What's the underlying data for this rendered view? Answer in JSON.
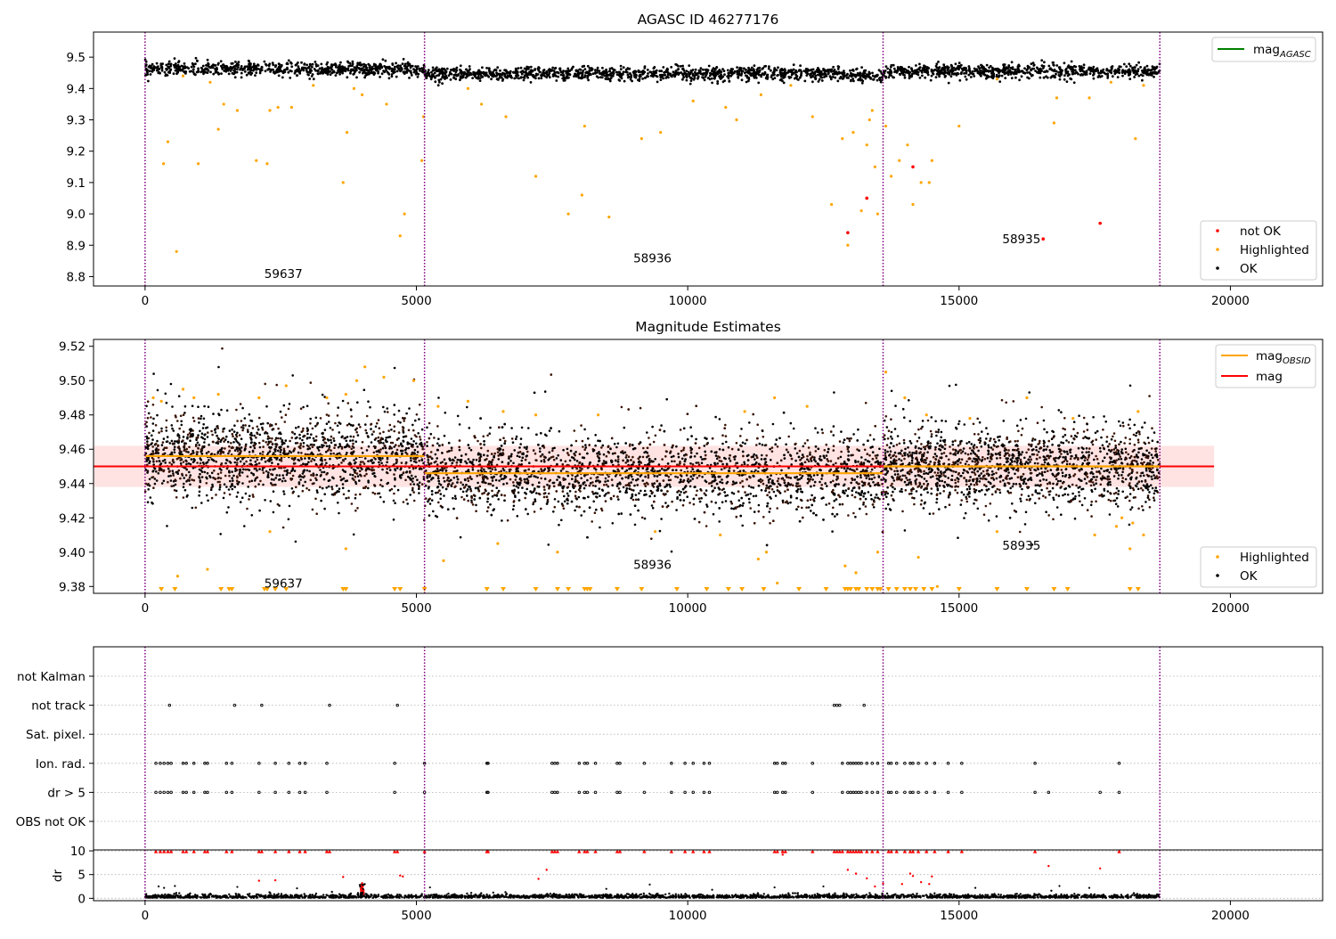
{
  "chart_data": [
    {
      "type": "scatter",
      "title": "AGASC ID 46277176",
      "xlim": [
        -950,
        21700
      ],
      "ylim": [
        8.77,
        9.58
      ],
      "xticks": [
        0,
        5000,
        10000,
        15000,
        20000
      ],
      "yticks": [
        8.8,
        8.9,
        9.0,
        9.1,
        9.2,
        9.3,
        9.4,
        9.5
      ],
      "ytick_labels": [
        "8.8",
        "8.9",
        "9.0",
        "9.1",
        "9.2",
        "9.3",
        "9.4",
        "9.5"
      ],
      "obs_boundaries": [
        0,
        5150,
        13600,
        18700
      ],
      "obsid_labels": [
        {
          "text": "59637",
          "x": 2550,
          "y": 8.81
        },
        {
          "text": "58936",
          "x": 9350,
          "y": 8.86
        },
        {
          "text": "58935",
          "x": 16150,
          "y": 8.92
        }
      ],
      "legend_lines": [
        {
          "label": "mag",
          "sub": "AGASC",
          "color": "#008000"
        }
      ],
      "legend_points": [
        {
          "label": "not OK",
          "color": "#ff0000"
        },
        {
          "label": "Highlighted",
          "color": "#ffa500"
        },
        {
          "label": "OK",
          "color": "#000000"
        }
      ],
      "ok_band": {
        "center": 9.455,
        "spread": 0.022,
        "segments": [
          [
            0,
            5150,
            9.462
          ],
          [
            5150,
            12800,
            9.447
          ],
          [
            12800,
            13600,
            9.44
          ],
          [
            13600,
            18700,
            9.455
          ]
        ]
      },
      "highlighted_points": [
        [
          580,
          8.88
        ],
        [
          340,
          9.16
        ],
        [
          420,
          9.23
        ],
        [
          980,
          9.16
        ],
        [
          1350,
          9.27
        ],
        [
          1450,
          9.35
        ],
        [
          1700,
          9.33
        ],
        [
          2050,
          9.17
        ],
        [
          2250,
          9.16
        ],
        [
          2300,
          9.33
        ],
        [
          2450,
          9.34
        ],
        [
          2700,
          9.34
        ],
        [
          3650,
          9.1
        ],
        [
          3720,
          9.26
        ],
        [
          3850,
          9.4
        ],
        [
          4000,
          9.38
        ],
        [
          4450,
          9.35
        ],
        [
          4700,
          8.93
        ],
        [
          4780,
          9.0
        ],
        [
          5100,
          9.17
        ],
        [
          5130,
          9.31
        ],
        [
          6200,
          9.35
        ],
        [
          6650,
          9.31
        ],
        [
          7200,
          9.12
        ],
        [
          7800,
          9.0
        ],
        [
          8050,
          9.06
        ],
        [
          8100,
          9.28
        ],
        [
          8550,
          8.99
        ],
        [
          9150,
          9.24
        ],
        [
          9500,
          9.26
        ],
        [
          10100,
          9.36
        ],
        [
          10700,
          9.34
        ],
        [
          10900,
          9.3
        ],
        [
          11350,
          9.38
        ],
        [
          12300,
          9.31
        ],
        [
          12650,
          9.03
        ],
        [
          12850,
          9.24
        ],
        [
          12950,
          8.9
        ],
        [
          13050,
          9.26
        ],
        [
          13200,
          9.01
        ],
        [
          13300,
          9.22
        ],
        [
          13350,
          9.3
        ],
        [
          13400,
          9.33
        ],
        [
          13450,
          9.15
        ],
        [
          13500,
          9.0
        ],
        [
          13650,
          9.28
        ],
        [
          13750,
          9.12
        ],
        [
          13900,
          9.17
        ],
        [
          14050,
          9.22
        ],
        [
          14150,
          9.03
        ],
        [
          14300,
          9.1
        ],
        [
          14450,
          9.1
        ],
        [
          14500,
          9.17
        ],
        [
          15000,
          9.28
        ],
        [
          16750,
          9.29
        ],
        [
          18250,
          9.24
        ],
        [
          18400,
          9.41
        ],
        [
          17400,
          9.37
        ],
        [
          17800,
          9.42
        ],
        [
          700,
          9.44
        ],
        [
          1200,
          9.42
        ],
        [
          3100,
          9.41
        ],
        [
          5950,
          9.4
        ],
        [
          11900,
          9.41
        ],
        [
          15700,
          9.43
        ],
        [
          16800,
          9.37
        ]
      ],
      "not_ok_points": [
        [
          12950,
          8.94
        ],
        [
          13300,
          9.05
        ],
        [
          14150,
          9.15
        ],
        [
          16550,
          8.92
        ],
        [
          17600,
          8.97
        ]
      ]
    },
    {
      "type": "scatter",
      "title": "Magnitude Estimates",
      "xlim": [
        -950,
        21700
      ],
      "ylim": [
        9.376,
        9.524
      ],
      "xticks": [
        0,
        5000,
        10000,
        15000,
        20000
      ],
      "yticks": [
        9.38,
        9.4,
        9.42,
        9.44,
        9.46,
        9.48,
        9.5,
        9.52
      ],
      "ytick_labels": [
        "9.38",
        "9.40",
        "9.42",
        "9.44",
        "9.46",
        "9.48",
        "9.50",
        "9.52"
      ],
      "obs_boundaries": [
        0,
        5150,
        13600,
        18700
      ],
      "obsid_labels": [
        {
          "text": "59637",
          "x": 2550,
          "y": 9.382
        },
        {
          "text": "58936",
          "x": 9350,
          "y": 9.393
        },
        {
          "text": "58935",
          "x": 16150,
          "y": 9.404
        }
      ],
      "mag": 9.45,
      "mag_band": [
        9.438,
        9.462
      ],
      "mag_band_x": [
        -950,
        19700
      ],
      "mag_obsid": [
        {
          "x": [
            0,
            5150
          ],
          "y": 9.456
        },
        {
          "x": [
            5150,
            13600
          ],
          "y": 9.446
        },
        {
          "x": [
            13600,
            18700
          ],
          "y": 9.45
        }
      ],
      "legend_lines": [
        {
          "label": "mag",
          "sub": "OBSID",
          "color": "#ffa500"
        },
        {
          "label": "mag",
          "sub": "",
          "color": "#ff0000"
        }
      ],
      "legend_points": [
        {
          "label": "Highlighted",
          "color": "#ffa500"
        },
        {
          "label": "OK",
          "color": "#000000"
        }
      ],
      "ok_band": {
        "segments": [
          [
            0,
            5150,
            9.456,
            0.012
          ],
          [
            5150,
            13600,
            9.446,
            0.011
          ],
          [
            13600,
            18700,
            9.45,
            0.011
          ]
        ]
      },
      "highlighted_points": [
        [
          150,
          9.49
        ],
        [
          300,
          9.488
        ],
        [
          700,
          9.495
        ],
        [
          900,
          9.49
        ],
        [
          1350,
          9.492
        ],
        [
          2100,
          9.49
        ],
        [
          2600,
          9.497
        ],
        [
          3350,
          9.49
        ],
        [
          3700,
          9.492
        ],
        [
          3900,
          9.5
        ],
        [
          4050,
          9.508
        ],
        [
          4400,
          9.502
        ],
        [
          4950,
          9.5
        ],
        [
          5400,
          9.485
        ],
        [
          5950,
          9.488
        ],
        [
          6600,
          9.482
        ],
        [
          7200,
          9.48
        ],
        [
          8350,
          9.48
        ],
        [
          11050,
          9.482
        ],
        [
          11600,
          9.49
        ],
        [
          12200,
          9.485
        ],
        [
          13650,
          9.505
        ],
        [
          14000,
          9.49
        ],
        [
          14400,
          9.48
        ],
        [
          15200,
          9.478
        ],
        [
          16250,
          9.49
        ],
        [
          17100,
          9.478
        ],
        [
          18300,
          9.482
        ],
        [
          600,
          9.386
        ],
        [
          1150,
          9.39
        ],
        [
          2300,
          9.412
        ],
        [
          3700,
          9.402
        ],
        [
          5500,
          9.395
        ],
        [
          6500,
          9.405
        ],
        [
          7600,
          9.4
        ],
        [
          9400,
          9.412
        ],
        [
          10600,
          9.41
        ],
        [
          11300,
          9.396
        ],
        [
          11450,
          9.4
        ],
        [
          11650,
          9.382
        ],
        [
          12900,
          9.392
        ],
        [
          13100,
          9.388
        ],
        [
          13500,
          9.4
        ],
        [
          14250,
          9.397
        ],
        [
          14600,
          9.38
        ],
        [
          15700,
          9.412
        ],
        [
          17500,
          9.41
        ],
        [
          17900,
          9.415
        ],
        [
          18000,
          9.42
        ],
        [
          18150,
          9.402
        ],
        [
          18200,
          9.417
        ],
        [
          18400,
          9.41
        ]
      ],
      "clipped_x": [
        300,
        550,
        1400,
        1550,
        1600,
        2200,
        2250,
        2400,
        2600,
        3650,
        3700,
        4600,
        4700,
        5150,
        6300,
        6600,
        7200,
        7600,
        7800,
        8100,
        8150,
        8200,
        8700,
        9150,
        9800,
        10350,
        10750,
        11000,
        11400,
        12050,
        12550,
        12900,
        12950,
        13000,
        13100,
        13150,
        13300,
        13400,
        13500,
        13550,
        13700,
        13850,
        14000,
        14100,
        14200,
        14350,
        14500,
        15000,
        15700,
        16250,
        16750,
        17000,
        18150,
        18300
      ]
    },
    {
      "type": "scatter",
      "title": "",
      "xlim": [
        -950,
        21700
      ],
      "xticks": [
        0,
        5000,
        10000,
        15000,
        20000
      ],
      "obs_boundaries": [
        0,
        5150,
        13600,
        18700
      ],
      "flag_categories": [
        "not Kalman",
        "not track",
        "Sat. pixel.",
        "Ion. rad.",
        "dr > 5",
        "OBS not OK"
      ],
      "flags": {
        "not track": [
          450,
          1650,
          2150,
          3400,
          4650,
          12700,
          12750,
          12800,
          13250
        ],
        "Ion. rad.": [
          200,
          280,
          350,
          420,
          480,
          700,
          760,
          900,
          1100,
          1150,
          1500,
          1600,
          2100,
          2400,
          2650,
          2850,
          2950,
          3350,
          4600,
          5150,
          6300,
          6320,
          7500,
          7550,
          7600,
          8000,
          8100,
          8150,
          8300,
          8700,
          8750,
          9200,
          9700,
          9950,
          10100,
          10300,
          10400,
          11600,
          11650,
          11750,
          11800,
          12300,
          12850,
          12950,
          13000,
          13050,
          13100,
          13150,
          13200,
          13300,
          13400,
          13500,
          13700,
          13750,
          13850,
          14000,
          14100,
          14150,
          14250,
          14400,
          14550,
          14800,
          15050,
          16400,
          17950
        ],
        "dr > 5": [
          200,
          280,
          350,
          420,
          480,
          700,
          760,
          900,
          1100,
          1150,
          1500,
          1600,
          2100,
          2400,
          2650,
          2850,
          2950,
          3350,
          4600,
          5150,
          6300,
          6320,
          7500,
          7550,
          7600,
          8000,
          8100,
          8150,
          8300,
          8700,
          8750,
          9200,
          9700,
          9950,
          10100,
          10300,
          10400,
          11600,
          11650,
          11750,
          11800,
          12300,
          12850,
          12950,
          13000,
          13050,
          13100,
          13150,
          13200,
          13300,
          13400,
          13500,
          13700,
          13750,
          13850,
          14000,
          14100,
          14150,
          14250,
          14400,
          14550,
          14800,
          15050,
          16400,
          16650,
          17600,
          17950
        ]
      },
      "dr_ylabel": "dr",
      "dr_ylim": [
        -0.5,
        10.2
      ],
      "dr_yticks": [
        0,
        5,
        10
      ],
      "dr_ytick_labels": [
        "0",
        "5",
        "10"
      ],
      "dr_high_x": [
        200,
        280,
        350,
        420,
        480,
        700,
        760,
        900,
        1100,
        1150,
        1500,
        1600,
        2100,
        2150,
        2400,
        2650,
        2850,
        2950,
        3350,
        3400,
        4600,
        4650,
        5150,
        6300,
        6320,
        7500,
        7550,
        7600,
        8000,
        8100,
        8150,
        8300,
        8700,
        8750,
        9200,
        9700,
        9950,
        10100,
        10300,
        10400,
        11600,
        11650,
        11750,
        11800,
        12300,
        12700,
        12750,
        12800,
        12850,
        12950,
        13000,
        13050,
        13100,
        13150,
        13200,
        13300,
        13400,
        13500,
        13700,
        13750,
        13850,
        14000,
        14100,
        14150,
        14250,
        14400,
        14550,
        14800,
        15050,
        16400,
        17950
      ],
      "dr_red_points": [
        [
          11750,
          9.2
        ],
        [
          12950,
          6.0
        ],
        [
          13100,
          5.2
        ],
        [
          13300,
          4.2
        ],
        [
          14100,
          5.2
        ],
        [
          14150,
          4.7
        ],
        [
          14300,
          3.4
        ],
        [
          14450,
          3.0
        ],
        [
          14500,
          4.6
        ],
        [
          7250,
          4.1
        ],
        [
          7400,
          6.0
        ],
        [
          4000,
          3.2
        ],
        [
          3650,
          4.5
        ],
        [
          2100,
          3.7
        ],
        [
          2400,
          3.8
        ],
        [
          4700,
          4.8
        ],
        [
          4750,
          4.6
        ],
        [
          16650,
          6.8
        ],
        [
          17600,
          6.3
        ],
        [
          13600,
          3.1
        ],
        [
          13450,
          2.5
        ],
        [
          13950,
          3.0
        ]
      ],
      "dr_black_points": [
        [
          250,
          2.5
        ],
        [
          350,
          2.2
        ],
        [
          550,
          2.6
        ],
        [
          1700,
          2.4
        ],
        [
          2800,
          2.1
        ],
        [
          5250,
          2.3
        ],
        [
          8500,
          2.0
        ],
        [
          9300,
          2.9
        ],
        [
          10450,
          1.8
        ],
        [
          11600,
          2.3
        ],
        [
          12500,
          2.5
        ],
        [
          15300,
          2.2
        ],
        [
          16850,
          2.6
        ],
        [
          17400,
          2.2
        ]
      ]
    }
  ]
}
